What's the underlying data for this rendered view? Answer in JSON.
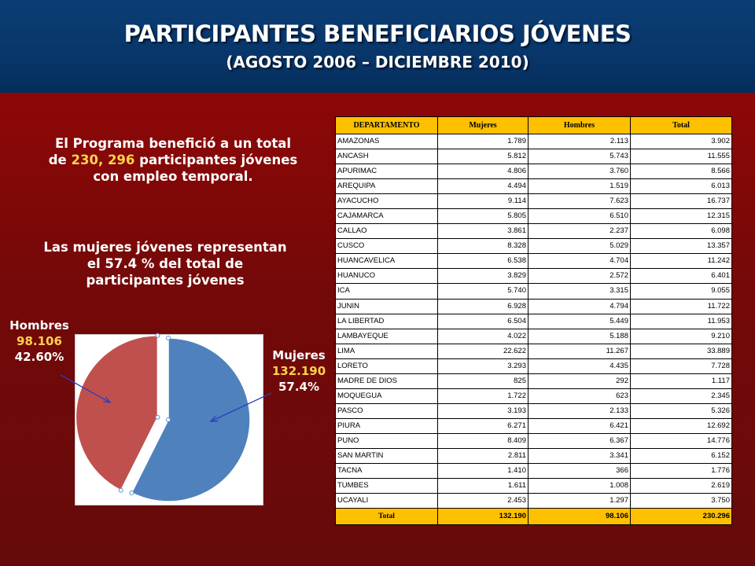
{
  "header": {
    "title": "PARTICIPANTES BENEFICIARIOS JÓVENES",
    "subtitle": "(AGOSTO 2006 – DICIEMBRE 2010)"
  },
  "intro": {
    "line_a": "El Programa benefició a un total",
    "line_b_prefix": "de ",
    "line_b_highlight": "230, 296",
    "line_b_suffix": " participantes jóvenes",
    "line_c": "con empleo temporal."
  },
  "women_note": {
    "line_a": "Las mujeres jóvenes representan",
    "line_b": "el 57.4 % del total de",
    "line_c": "participantes jóvenes"
  },
  "chart_data": {
    "type": "pie",
    "title": "",
    "slices": [
      {
        "name": "Mujeres",
        "value": 132190,
        "value_label": "132.190",
        "percent_label": "57.4%",
        "color": "#4f81bd"
      },
      {
        "name": "Hombres",
        "value": 98106,
        "value_label": "98.106",
        "percent_label": "42.60%",
        "color": "#c0504d"
      }
    ],
    "arrow_color": "#2a3fbf"
  },
  "table": {
    "headers": [
      "DEPARTAMENTO",
      "Mujeres",
      "Hombres",
      "Total"
    ],
    "rows": [
      [
        "AMAZONAS",
        "1.789",
        "2.113",
        "3.902"
      ],
      [
        "ANCASH",
        "5.812",
        "5.743",
        "11.555"
      ],
      [
        "APURIMAC",
        "4.806",
        "3.760",
        "8.566"
      ],
      [
        "AREQUIPA",
        "4.494",
        "1.519",
        "6.013"
      ],
      [
        "AYACUCHO",
        "9.114",
        "7.623",
        "16.737"
      ],
      [
        "CAJAMARCA",
        "5.805",
        "6.510",
        "12.315"
      ],
      [
        "CALLAO",
        "3.861",
        "2.237",
        "6.098"
      ],
      [
        "CUSCO",
        "8.328",
        "5.029",
        "13.357"
      ],
      [
        "HUANCAVELICA",
        "6.538",
        "4.704",
        "11.242"
      ],
      [
        "HUANUCO",
        "3.829",
        "2.572",
        "6.401"
      ],
      [
        "ICA",
        "5.740",
        "3.315",
        "9.055"
      ],
      [
        "JUNIN",
        "6.928",
        "4.794",
        "11.722"
      ],
      [
        "LA LIBERTAD",
        "6.504",
        "5.449",
        "11.953"
      ],
      [
        "LAMBAYEQUE",
        "4.022",
        "5.188",
        "9.210"
      ],
      [
        "LIMA",
        "22.622",
        "11.267",
        "33.889"
      ],
      [
        "LORETO",
        "3.293",
        "4.435",
        "7.728"
      ],
      [
        "MADRE DE DIOS",
        "825",
        "292",
        "1.117"
      ],
      [
        "MOQUEGUA",
        "1.722",
        "623",
        "2.345"
      ],
      [
        "PASCO",
        "3.193",
        "2.133",
        "5.326"
      ],
      [
        "PIURA",
        "6.271",
        "6.421",
        "12.692"
      ],
      [
        "PUNO",
        "8.409",
        "6.367",
        "14.776"
      ],
      [
        "SAN MARTIN",
        "2.811",
        "3.341",
        "6.152"
      ],
      [
        "TACNA",
        "1.410",
        "366",
        "1.776"
      ],
      [
        "TUMBES",
        "1.611",
        "1.008",
        "2.619"
      ],
      [
        "UCAYALI",
        "2.453",
        "1.297",
        "3.750"
      ]
    ],
    "total": [
      "Total",
      "132.190",
      "98.106",
      "230.296"
    ]
  },
  "colors": {
    "header_bg": "#08366a",
    "slide_bg": "#7a0909",
    "highlight": "#ffd24a",
    "table_header": "#ffc000"
  }
}
